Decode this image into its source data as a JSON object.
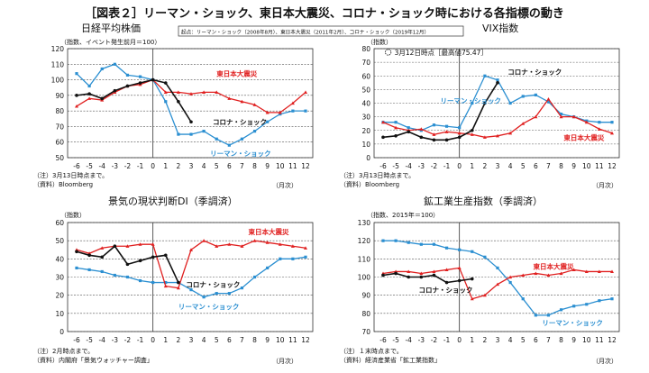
{
  "title": "［図表２］リーマン・ショック、東日本大震災、コロナ・ショック時における各指標の動き",
  "origin_note": "起点：リーマン・ショック（2008年8月）、東日本大震災（2011年2月）、コロナ・ショック（2019年12月）",
  "colors": {
    "lehman": "#2b8fd1",
    "quake": "#e02020",
    "corona": "#111111"
  },
  "chart_data": [
    {
      "type": "line",
      "title": "日経平均株価",
      "subtitle": "（指数、イベント発生前月＝100）",
      "xlabel": "（月次）",
      "note1": "（注）3月13日時点まで。",
      "note2": "（資料）Bloomberg",
      "x": [
        -6,
        -5,
        -4,
        -3,
        -2,
        -1,
        0,
        1,
        2,
        3,
        4,
        5,
        6,
        7,
        8,
        9,
        10,
        11,
        12
      ],
      "ylim": [
        50,
        120
      ],
      "ystep": 10,
      "xticks": [
        "-6",
        "-5",
        "-4",
        "-3",
        "-2",
        "-1",
        "0",
        "1",
        "2",
        "3",
        "4",
        "5",
        "6",
        "7",
        "8",
        "9",
        "10",
        "11",
        "12"
      ],
      "series": [
        {
          "name": "リーマン・ショック",
          "key": "lehman",
          "x": [
            -6,
            -5,
            -4,
            -3,
            -2,
            -1,
            0,
            1,
            2,
            3,
            4,
            5,
            6,
            7,
            8,
            9,
            10,
            11,
            12
          ],
          "values": [
            104,
            96,
            107,
            110,
            103,
            102,
            100,
            86,
            65,
            65,
            67,
            62,
            58,
            62,
            67,
            73,
            78,
            80,
            80
          ]
        },
        {
          "name": "東日本大震災",
          "key": "quake",
          "x": [
            -6,
            -5,
            -4,
            -3,
            -2,
            -1,
            0,
            1,
            2,
            3,
            4,
            5,
            6,
            7,
            8,
            9,
            10,
            11,
            12
          ],
          "values": [
            83,
            88,
            87,
            92,
            96,
            97,
            100,
            92,
            92,
            91,
            92,
            92,
            88,
            86,
            84,
            79,
            79,
            85,
            92
          ]
        },
        {
          "name": "コロナ・ショック",
          "key": "corona",
          "x": [
            -6,
            -5,
            -4,
            -3,
            -2,
            -1,
            0,
            1,
            2,
            3
          ],
          "values": [
            90,
            91,
            88,
            93,
            96,
            98,
            100,
            98,
            86,
            73
          ]
        }
      ],
      "labels": [
        {
          "text": "東日本大震災",
          "key": "quake",
          "x": 5,
          "y": 104
        },
        {
          "text": "コロナ・ショック",
          "key": "corona",
          "x": 4.7,
          "y": 73
        },
        {
          "text": "リーマン・ショック",
          "key": "lehman",
          "x": 4.5,
          "y": 53
        }
      ]
    },
    {
      "type": "line",
      "title": "VIX指数",
      "subtitle": "（指数）",
      "xlabel": "（月次）",
      "note1": "（注）3月13日時点まで。",
      "note2": "（資料）Bloomberg",
      "annotation": "3月12日時点［最高値75.47］",
      "x": [
        -6,
        -5,
        -4,
        -3,
        -2,
        -1,
        0,
        1,
        2,
        3,
        4,
        5,
        6,
        7,
        8,
        9,
        10,
        11,
        12
      ],
      "ylim": [
        0,
        80
      ],
      "ystep": 10,
      "xticks": [
        "-6",
        "-5",
        "-4",
        "-3",
        "-2",
        "-1",
        "0",
        "1",
        "2",
        "3",
        "4",
        "5",
        "6",
        "7",
        "8",
        "9",
        "10",
        "11",
        "12"
      ],
      "series": [
        {
          "name": "リーマン・ショック",
          "key": "lehman",
          "x": [
            -6,
            -5,
            -4,
            -3,
            -2,
            -1,
            0,
            1,
            2,
            3,
            4,
            5,
            6,
            7,
            8,
            9,
            10,
            11,
            12
          ],
          "values": [
            26,
            26,
            22,
            20,
            24,
            23,
            22,
            40,
            60,
            57,
            40,
            45,
            46,
            41,
            32,
            30,
            27,
            26,
            26
          ]
        },
        {
          "name": "東日本大震災",
          "key": "quake",
          "x": [
            -6,
            -5,
            -4,
            -3,
            -2,
            -1,
            0,
            1,
            2,
            3,
            4,
            5,
            6,
            7,
            8,
            9,
            10,
            11,
            12
          ],
          "values": [
            26,
            22,
            20,
            21,
            17,
            19,
            18,
            17,
            15,
            16,
            18,
            25,
            30,
            43,
            30,
            30,
            26,
            21,
            18
          ]
        },
        {
          "name": "コロナ・ショック",
          "key": "corona",
          "x": [
            -6,
            -5,
            -4,
            -3,
            -2,
            -1,
            0,
            1,
            2,
            3
          ],
          "values": [
            15,
            16,
            19,
            15,
            13,
            13,
            15,
            20,
            40,
            55
          ]
        }
      ],
      "labels": [
        {
          "text": "コロナ・ショック",
          "key": "corona",
          "x": 3.8,
          "y": 63
        },
        {
          "text": "リーマン・ショック",
          "key": "lehman",
          "x": -1.5,
          "y": 42
        },
        {
          "text": "東日本大震災",
          "key": "quake",
          "x": 8.2,
          "y": 15
        }
      ]
    },
    {
      "type": "line",
      "title": "景気の現状判断DI（季調済）",
      "subtitle": "（指数）",
      "xlabel": "（月次）",
      "note1": "（注）2月時点まで。",
      "note2": "（資料）内閣府「景気ウォッチャー調査」",
      "x": [
        -6,
        -5,
        -4,
        -3,
        -2,
        -1,
        0,
        1,
        2,
        3,
        4,
        5,
        6,
        7,
        8,
        9,
        10,
        11,
        12
      ],
      "ylim": [
        0,
        60
      ],
      "ystep": 10,
      "xticks": [
        "-6",
        "-5",
        "-4",
        "-3",
        "-2",
        "-1",
        "0",
        "1",
        "2",
        "3",
        "4",
        "5",
        "6",
        "7",
        "8",
        "9",
        "10",
        "11",
        "12"
      ],
      "series": [
        {
          "name": "リーマン・ショック",
          "key": "lehman",
          "x": [
            -6,
            -5,
            -4,
            -3,
            -2,
            -1,
            0,
            1,
            2,
            3,
            4,
            5,
            6,
            7,
            8,
            9,
            10,
            11,
            12
          ],
          "values": [
            35,
            34,
            33,
            31,
            30,
            28,
            27,
            27,
            27,
            23,
            19,
            21,
            21,
            24,
            30,
            35,
            40,
            40,
            41
          ]
        },
        {
          "name": "東日本大震災",
          "key": "quake",
          "x": [
            -6,
            -5,
            -4,
            -3,
            -2,
            -1,
            0,
            1,
            2,
            3,
            4,
            5,
            6,
            7,
            8,
            9,
            10,
            11,
            12
          ],
          "values": [
            45,
            43,
            46,
            47,
            47,
            48,
            48,
            25,
            24,
            45,
            50,
            47,
            48,
            47,
            50,
            49,
            48,
            47,
            46
          ]
        },
        {
          "name": "コロナ・ショック",
          "key": "corona",
          "x": [
            -6,
            -5,
            -4,
            -3,
            -2,
            -1,
            0,
            1,
            2
          ],
          "values": [
            44,
            42,
            41,
            47,
            37,
            39,
            41,
            42,
            27
          ]
        }
      ],
      "labels": [
        {
          "text": "東日本大震災",
          "key": "quake",
          "x": 7.5,
          "y": 55
        },
        {
          "text": "コロナ・ショック",
          "key": "corona",
          "x": 2.6,
          "y": 26
        },
        {
          "text": "リーマン・ショック",
          "key": "lehman",
          "x": 2,
          "y": 14
        }
      ]
    },
    {
      "type": "line",
      "title": "鉱工業生産指数（季調済）",
      "subtitle": "（指数、2015年＝100）",
      "xlabel": "（月次）",
      "note1": "（注）１末時点まで。",
      "note2": "（資料）経済産業省「鉱工業指数」",
      "x": [
        -6,
        -5,
        -4,
        -3,
        -2,
        -1,
        0,
        1,
        2,
        3,
        4,
        5,
        6,
        7,
        8,
        9,
        10,
        11,
        12
      ],
      "ylim": [
        70,
        130
      ],
      "ystep": 10,
      "xticks": [
        "-6",
        "-5",
        "-4",
        "-3",
        "-2",
        "-1",
        "0",
        "1",
        "2",
        "3",
        "4",
        "5",
        "6",
        "7",
        "8",
        "9",
        "10",
        "11",
        "12"
      ],
      "series": [
        {
          "name": "リーマン・ショック",
          "key": "lehman",
          "x": [
            -6,
            -5,
            -4,
            -3,
            -2,
            -1,
            0,
            1,
            2,
            3,
            4,
            5,
            6,
            7,
            8,
            9,
            10,
            11,
            12
          ],
          "values": [
            120,
            120,
            119,
            118,
            118,
            116,
            115,
            114,
            111,
            105,
            97,
            88,
            79,
            79,
            82,
            84,
            85,
            87,
            88
          ]
        },
        {
          "name": "東日本大震災",
          "key": "quake",
          "x": [
            -6,
            -5,
            -4,
            -3,
            -2,
            -1,
            0,
            1,
            2,
            3,
            4,
            5,
            6,
            7,
            8,
            9,
            10,
            11,
            12
          ],
          "values": [
            102,
            103,
            103,
            102,
            103,
            104,
            105,
            88,
            90,
            96,
            100,
            101,
            102,
            101,
            102,
            104,
            103,
            103,
            103
          ]
        },
        {
          "name": "コロナ・ショック",
          "key": "corona",
          "x": [
            -6,
            -5,
            -4,
            -3,
            -2,
            -1,
            0,
            1
          ],
          "values": [
            101,
            102,
            100,
            100,
            101,
            97,
            98,
            99
          ]
        }
      ],
      "labels": [
        {
          "text": "東日本大震災",
          "key": "quake",
          "x": 5.8,
          "y": 106
        },
        {
          "text": "コロナ・ショック",
          "key": "corona",
          "x": -3.2,
          "y": 93
        },
        {
          "text": "リーマン・ショック",
          "key": "lehman",
          "x": 6.5,
          "y": 75
        }
      ]
    }
  ]
}
